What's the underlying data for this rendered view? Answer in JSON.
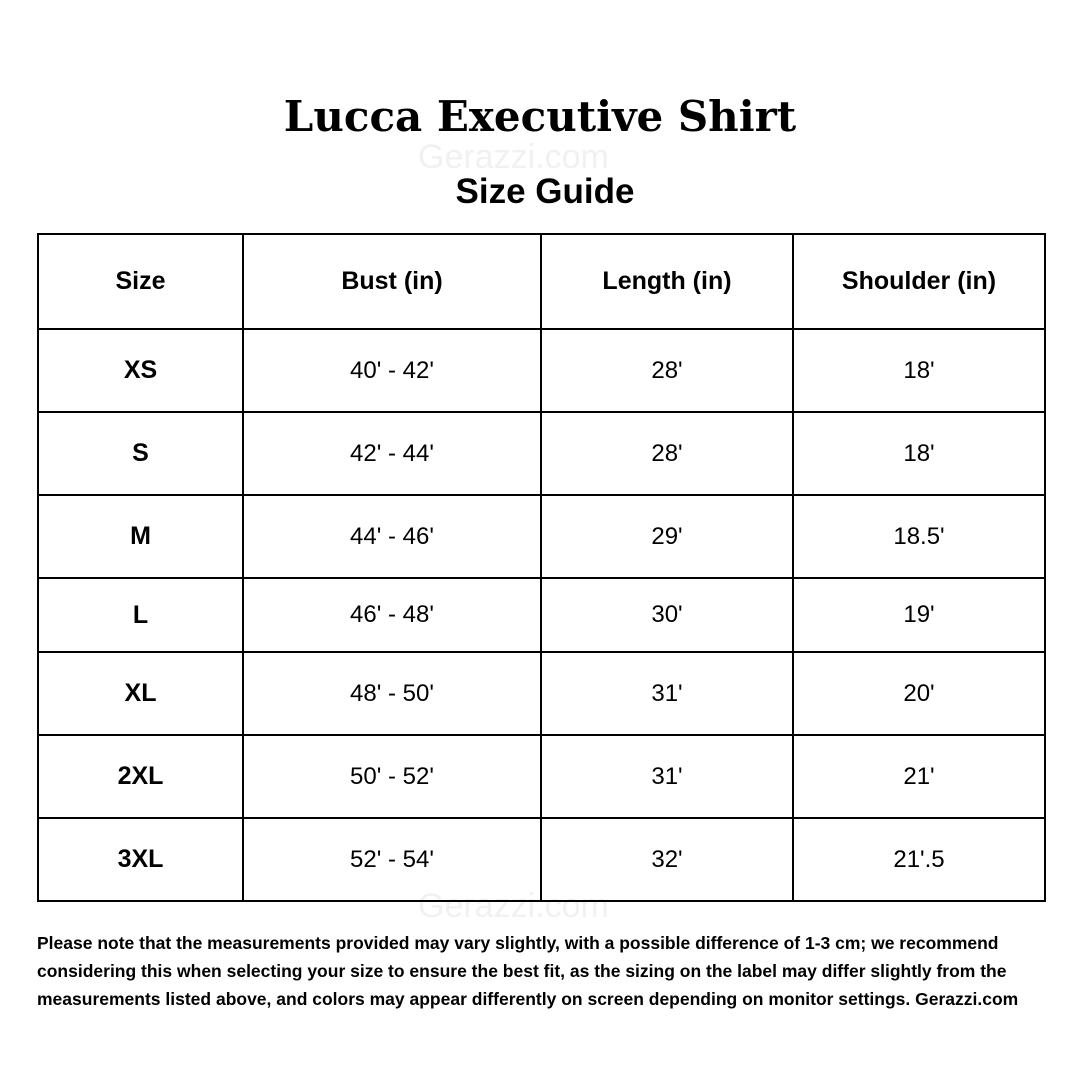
{
  "title": "Lucca Executive Shirt",
  "subtitle": "Size Guide",
  "watermark": "Gerazzi.com",
  "table": {
    "headers": [
      "Size",
      "Bust (in)",
      "Length (in)",
      "Shoulder (in)"
    ],
    "rows": [
      [
        "XS",
        "40' - 42'",
        "28'",
        "18'"
      ],
      [
        "S",
        "42' - 44'",
        "28'",
        "18'"
      ],
      [
        "M",
        "44' - 46'",
        "29'",
        "18.5'"
      ],
      [
        "L",
        "46' - 48'",
        "30'",
        "19'"
      ],
      [
        "XL",
        "48' - 50'",
        "31'",
        "20'"
      ],
      [
        "2XL",
        "50' - 52'",
        "31'",
        "21'"
      ],
      [
        "3XL",
        "52' - 54'",
        "32'",
        "21'.5"
      ]
    ]
  },
  "note": "Please note that the measurements provided may vary slightly, with a possible difference of 1-3 cm; we recommend considering this when selecting your size to ensure the best fit, as the sizing on the label may differ slightly from the measurements listed above, and colors may appear differently on screen depending on monitor settings. Gerazzi.com"
}
